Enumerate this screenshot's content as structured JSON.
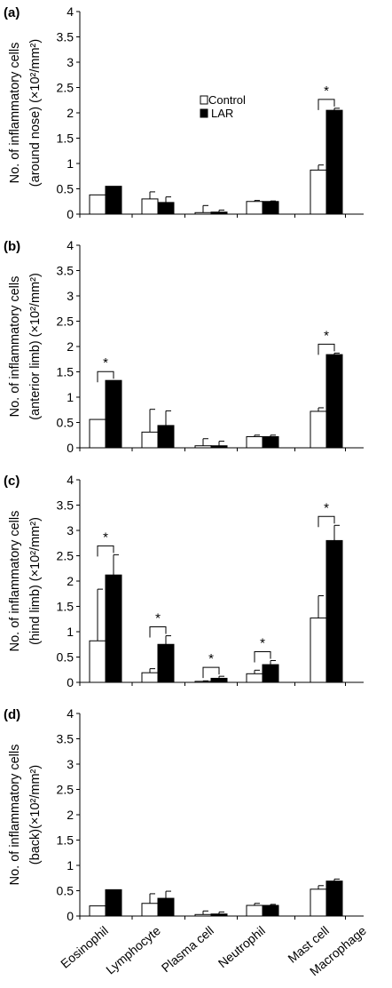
{
  "legend": {
    "control": "Control",
    "lar": "LAR"
  },
  "colors": {
    "control": "#ffffff",
    "lar": "#000000",
    "axis": "#000000"
  },
  "chart_data": [
    {
      "type": "bar",
      "panel_label": "(a)",
      "ylabel_lines": [
        "No. of inflammatory cells",
        "(around nose) (×10²/mm²)"
      ],
      "ylim": [
        0,
        4
      ],
      "yticks": [
        "0",
        "0.5",
        "1",
        "1.5",
        "2",
        "2.5",
        "3",
        "3.5",
        "4"
      ],
      "categories": [
        "Eosinophil",
        "Lymphocyte",
        "Plasma cell",
        "Neutrophil",
        "Mast cell",
        "Macrophage"
      ],
      "series": [
        {
          "name": "Control",
          "values": [
            0.38,
            0.3,
            0.03,
            0.25,
            0.87,
            null
          ],
          "errors": [
            0.0,
            0.14,
            0.14,
            0.02,
            0.1,
            null
          ]
        },
        {
          "name": "LAR",
          "values": [
            0.55,
            0.23,
            0.04,
            0.25,
            2.05,
            null
          ],
          "errors": [
            0.0,
            0.11,
            0.04,
            0.01,
            0.04,
            null
          ]
        }
      ],
      "significance": [
        {
          "category": 4,
          "label": "*"
        }
      ],
      "show_legend": true,
      "show_category_labels": false
    },
    {
      "type": "bar",
      "panel_label": "(b)",
      "ylabel_lines": [
        "No. of inflammatory cells",
        "(anterior limb) (×10²/mm²)"
      ],
      "ylim": [
        0,
        4
      ],
      "yticks": [
        "0",
        "0.5",
        "1",
        "1.5",
        "2",
        "2.5",
        "3",
        "3.5",
        "4"
      ],
      "categories": [
        "Eosinophil",
        "Lymphocyte",
        "Plasma cell",
        "Neutrophil",
        "Mast cell",
        "Macrophage"
      ],
      "series": [
        {
          "name": "Control",
          "values": [
            0.56,
            0.31,
            0.04,
            0.22,
            0.72,
            null
          ],
          "errors": [
            0.0,
            0.45,
            0.14,
            0.03,
            0.07,
            null
          ]
        },
        {
          "name": "LAR",
          "values": [
            1.33,
            0.44,
            0.04,
            0.22,
            1.84,
            null
          ],
          "errors": [
            0.0,
            0.29,
            0.09,
            0.03,
            0.03,
            null
          ]
        }
      ],
      "significance": [
        {
          "category": 0,
          "label": "*"
        },
        {
          "category": 4,
          "label": "*"
        }
      ],
      "show_legend": false,
      "show_category_labels": false
    },
    {
      "type": "bar",
      "panel_label": "(c)",
      "ylabel_lines": [
        "No. of inflammatory cells",
        "(hind limb) (×10²/mm²)"
      ],
      "ylim": [
        0,
        4
      ],
      "yticks": [
        "0",
        "0.5",
        "1",
        "1.5",
        "2",
        "2.5",
        "3",
        "3.5",
        "4"
      ],
      "categories": [
        "Eosinophil",
        "Lymphocyte",
        "Plasma cell",
        "Neutrophil",
        "Mast cell",
        "Macrophage"
      ],
      "series": [
        {
          "name": "Control",
          "values": [
            0.82,
            0.19,
            0.02,
            0.17,
            1.27,
            null
          ],
          "errors": [
            1.02,
            0.08,
            0.01,
            0.07,
            0.44,
            null
          ]
        },
        {
          "name": "LAR",
          "values": [
            2.12,
            0.75,
            0.08,
            0.35,
            2.8,
            null
          ],
          "errors": [
            0.4,
            0.17,
            0.04,
            0.08,
            0.3,
            null
          ]
        }
      ],
      "significance": [
        {
          "category": 0,
          "label": "*"
        },
        {
          "category": 1,
          "label": "*"
        },
        {
          "category": 2,
          "label": "*"
        },
        {
          "category": 3,
          "label": "*"
        },
        {
          "category": 4,
          "label": "*"
        }
      ],
      "show_legend": false,
      "show_category_labels": false
    },
    {
      "type": "bar",
      "panel_label": "(d)",
      "ylabel_lines": [
        "No. of inflammatory cells",
        "(back)(×10²/mm²)"
      ],
      "ylim": [
        0,
        4
      ],
      "yticks": [
        "0",
        "0.5",
        "1",
        "1.5",
        "2",
        "2.5",
        "3",
        "3.5",
        "4"
      ],
      "categories": [
        "Eosinophil",
        "Lymphocyte",
        "Plasma cell",
        "Neutrophil",
        "Mast cell",
        "Macrophage"
      ],
      "series": [
        {
          "name": "Control",
          "values": [
            0.2,
            0.25,
            0.03,
            0.21,
            0.53,
            null
          ],
          "errors": [
            0.0,
            0.19,
            0.07,
            0.04,
            0.07,
            null
          ]
        },
        {
          "name": "LAR",
          "values": [
            0.52,
            0.35,
            0.04,
            0.21,
            0.69,
            null
          ],
          "errors": [
            0.0,
            0.14,
            0.04,
            0.02,
            0.04,
            null
          ]
        }
      ],
      "significance": [],
      "show_legend": false,
      "show_category_labels": true
    }
  ]
}
